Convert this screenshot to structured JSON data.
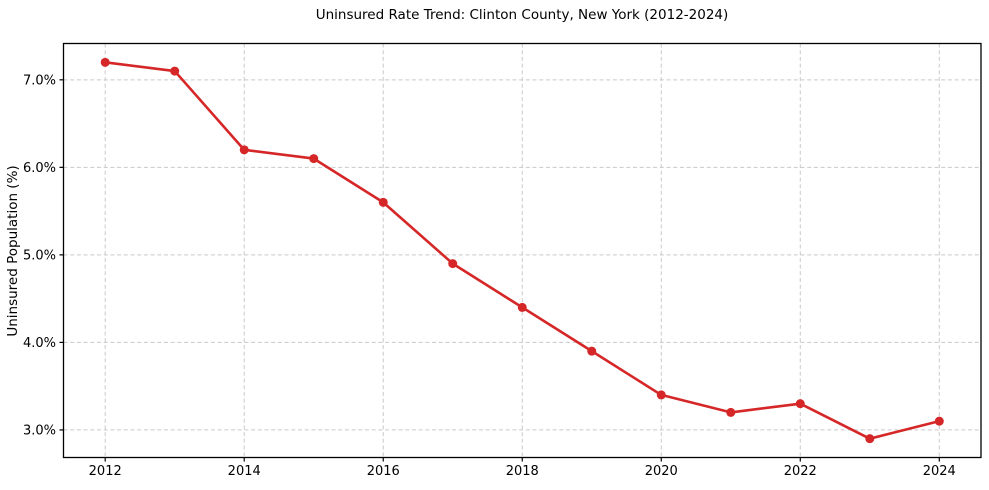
{
  "chart_data": {
    "type": "line",
    "title": "Uninsured Rate Trend: Clinton County, New York (2012-2024)",
    "xlabel": "",
    "ylabel": "Uninsured Population (%)",
    "x": [
      2012,
      2013,
      2014,
      2015,
      2016,
      2017,
      2018,
      2019,
      2020,
      2021,
      2022,
      2023,
      2024
    ],
    "series": [
      {
        "name": "Uninsured Population (%)",
        "values": [
          7.2,
          7.1,
          6.2,
          6.1,
          5.6,
          4.9,
          4.4,
          3.9,
          3.4,
          3.2,
          3.3,
          2.9,
          3.1
        ]
      }
    ],
    "x_ticks": [
      2012,
      2014,
      2016,
      2018,
      2020,
      2022,
      2024
    ],
    "x_tick_labels": [
      "2012",
      "2014",
      "2016",
      "2018",
      "2020",
      "2022",
      "2024"
    ],
    "y_ticks": [
      3.0,
      4.0,
      5.0,
      6.0,
      7.0
    ],
    "y_tick_labels": [
      "3.0%",
      "4.0%",
      "5.0%",
      "6.0%",
      "7.0%"
    ],
    "xlim": [
      2011.4,
      2024.6
    ],
    "ylim": [
      2.685,
      7.415
    ],
    "grid": true,
    "legend": null,
    "colors": {
      "line": "#d62728",
      "marker": "#d62728",
      "grid": "#c9c9c9",
      "spine": "#000000",
      "text": "#000000",
      "background": "#ffffff"
    }
  }
}
